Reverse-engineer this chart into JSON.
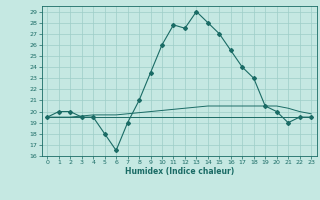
{
  "xlabel": "Humidex (Indice chaleur)",
  "ylabel": "",
  "bg_color": "#c5e8e2",
  "grid_color": "#9ecec7",
  "line_color": "#1a6b65",
  "xlim": [
    -0.5,
    23.5
  ],
  "ylim": [
    16,
    29.5
  ],
  "xticks": [
    0,
    1,
    2,
    3,
    4,
    5,
    6,
    7,
    8,
    9,
    10,
    11,
    12,
    13,
    14,
    15,
    16,
    17,
    18,
    19,
    20,
    21,
    22,
    23
  ],
  "yticks": [
    16,
    17,
    18,
    19,
    20,
    21,
    22,
    23,
    24,
    25,
    26,
    27,
    28,
    29
  ],
  "line1_x": [
    0,
    1,
    2,
    3,
    4,
    5,
    6,
    7,
    8,
    9,
    10,
    11,
    12,
    13,
    14,
    15,
    16,
    17,
    18,
    19,
    20,
    21,
    22,
    23
  ],
  "line1_y": [
    19.5,
    20,
    20,
    19.5,
    19.5,
    18,
    16.5,
    19,
    21,
    23.5,
    26,
    27.8,
    27.5,
    29,
    28,
    27,
    25.5,
    24,
    23,
    20.5,
    20,
    19,
    19.5,
    19.5
  ],
  "line2_x": [
    0,
    1,
    2,
    3,
    4,
    5,
    6,
    7,
    8,
    9,
    10,
    11,
    12,
    13,
    14,
    15,
    16,
    17,
    18,
    19,
    20,
    21,
    22,
    23
  ],
  "line2_y": [
    19.5,
    19.5,
    19.5,
    19.6,
    19.7,
    19.7,
    19.7,
    19.8,
    19.9,
    20.0,
    20.1,
    20.2,
    20.3,
    20.4,
    20.5,
    20.5,
    20.5,
    20.5,
    20.5,
    20.5,
    20.5,
    20.3,
    20.0,
    19.8
  ],
  "line3_x": [
    0,
    1,
    2,
    3,
    4,
    5,
    6,
    7,
    8,
    9,
    10,
    11,
    12,
    13,
    14,
    15,
    16,
    17,
    18,
    19,
    20,
    21,
    22,
    23
  ],
  "line3_y": [
    19.5,
    19.5,
    19.5,
    19.5,
    19.5,
    19.5,
    19.5,
    19.5,
    19.5,
    19.5,
    19.5,
    19.5,
    19.5,
    19.5,
    19.5,
    19.5,
    19.5,
    19.5,
    19.5,
    19.5,
    19.5,
    19.5,
    19.5,
    19.5
  ],
  "tick_fontsize": 4.5,
  "xlabel_fontsize": 5.5
}
